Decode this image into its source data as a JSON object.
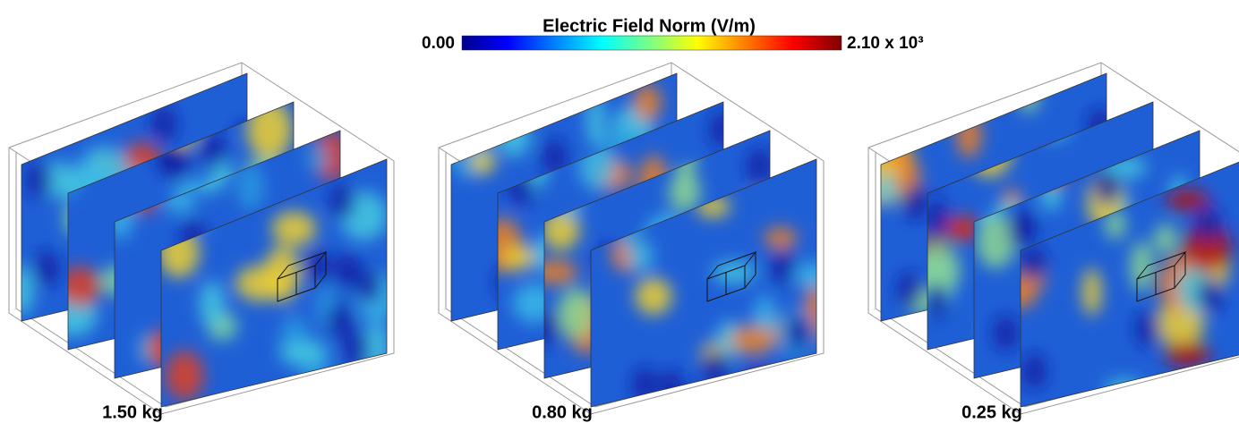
{
  "colorbar": {
    "title": "Electric Field Norm (V/m)",
    "min_label": "0.00",
    "max_label": "2.10 x 10³"
  },
  "panels": [
    {
      "label": "1.50 kg"
    },
    {
      "label": "0.80 kg"
    },
    {
      "label": "0.25 kg"
    }
  ]
}
